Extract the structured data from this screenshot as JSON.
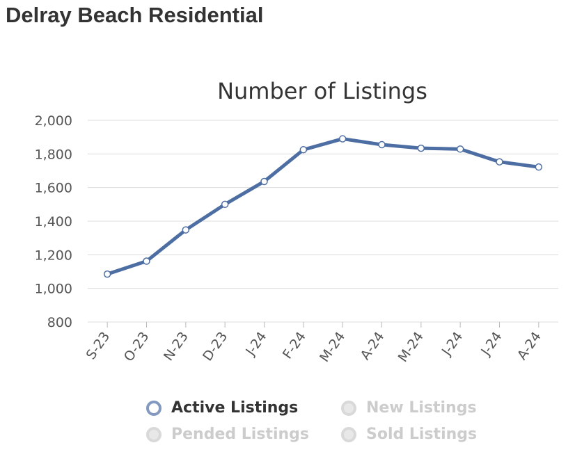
{
  "page": {
    "title": "Delray Beach Residential"
  },
  "chart_data": {
    "type": "line",
    "title": "Number of Listings",
    "categories": [
      "S-23",
      "O-23",
      "N-23",
      "D-23",
      "J-24",
      "F-24",
      "M-24",
      "A-24",
      "M-24",
      "J-24",
      "J-24",
      "A-24"
    ],
    "series": [
      {
        "name": "Active Listings",
        "values": [
          1085,
          1162,
          1348,
          1500,
          1636,
          1825,
          1890,
          1855,
          1834,
          1829,
          1753,
          1722
        ],
        "color": "#4d6ea3",
        "visible": true
      }
    ],
    "ylim": [
      800,
      2000
    ],
    "yticks": [
      "800",
      "1,000",
      "1,200",
      "1,400",
      "1,600",
      "1,800",
      "2,000"
    ],
    "ytick_values": [
      800,
      1000,
      1200,
      1400,
      1600,
      1800,
      2000
    ],
    "grid": true,
    "legend_position": "bottom"
  },
  "legend": {
    "items": [
      {
        "label": "Active Listings",
        "state": "active"
      },
      {
        "label": "New Listings",
        "state": "inactive"
      },
      {
        "label": "Pended Listings",
        "state": "inactive"
      },
      {
        "label": "Sold Listings",
        "state": "inactive"
      }
    ]
  }
}
